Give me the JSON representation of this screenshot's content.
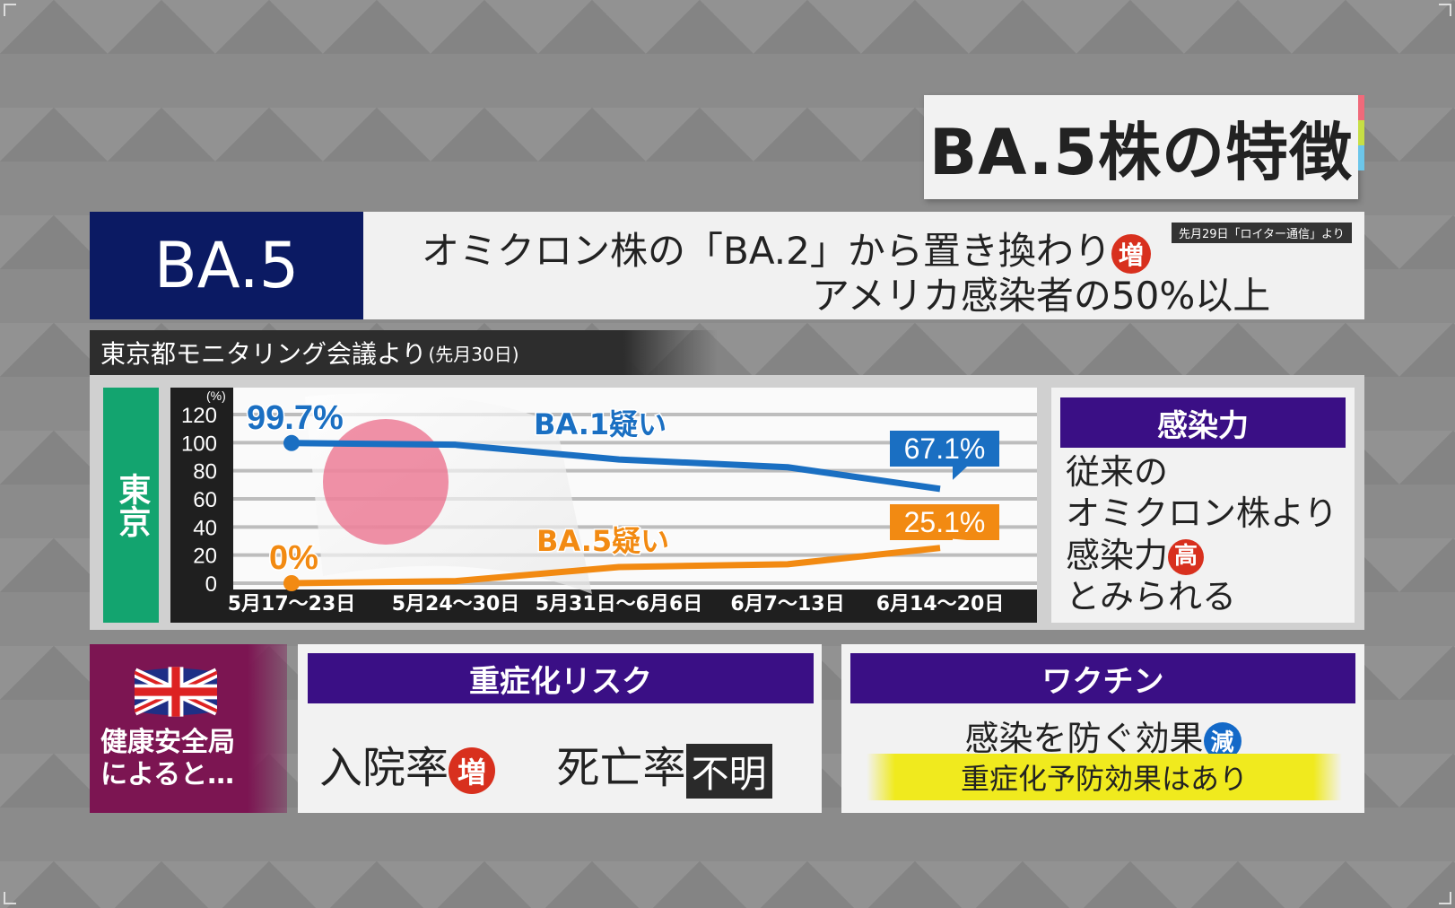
{
  "title": "BA.5株の特徴",
  "header": {
    "label": "BA.5",
    "line1": "オミクロン株の「BA.2」から置き換わり",
    "line1_badge": "増",
    "line2": "アメリカ感染者の50%以上",
    "source": "先月29日「ロイター通信」より"
  },
  "monitoring": {
    "title": "東京都モニタリング会議より",
    "note": "(先月30日)"
  },
  "region_label": "東京",
  "chart_data": {
    "type": "line",
    "ylabel": "(%)",
    "ylim": [
      0,
      120
    ],
    "yticks": [
      "120",
      "100",
      "80",
      "60",
      "40",
      "20",
      "0"
    ],
    "categories": [
      "5月17～23日",
      "5月24～30日",
      "5月31日～6月6日",
      "6月7～13日",
      "6月14～20日"
    ],
    "series": [
      {
        "name": "BA.1疑い",
        "color": "#1a6fc2",
        "values": [
          99.7,
          98.5,
          88,
          82.5,
          67.1
        ],
        "start_label": "99.7%",
        "end_label": "67.1%"
      },
      {
        "name": "BA.5疑い",
        "color": "#f28a12",
        "values": [
          0,
          1.5,
          11.5,
          13.5,
          25.1
        ],
        "start_label": "0%",
        "end_label": "25.1%"
      }
    ]
  },
  "infectivity": {
    "title": "感染力",
    "lines": [
      "従来の",
      "オミクロン株より",
      "感染力"
    ],
    "badge": "高",
    "last_line": "とみられる"
  },
  "uk": {
    "text_line1": "健康安全局",
    "text_line2": "によると…"
  },
  "risk": {
    "title": "重症化リスク",
    "hospital": "入院率",
    "hospital_badge": "増",
    "death": "死亡率",
    "death_status": "不明"
  },
  "vaccine": {
    "title": "ワクチン",
    "line1": "感染を防ぐ効果",
    "line1_badge": "減",
    "line2": "重症化予防効果はあり"
  },
  "colors": {
    "navy": "#0b1a63",
    "purple": "#3a0f85",
    "green": "#13a46f",
    "maroon": "#7c1552",
    "red_badge": "#d8301e",
    "blue_badge": "#1369c8",
    "highlight": "#f0ea1e"
  }
}
